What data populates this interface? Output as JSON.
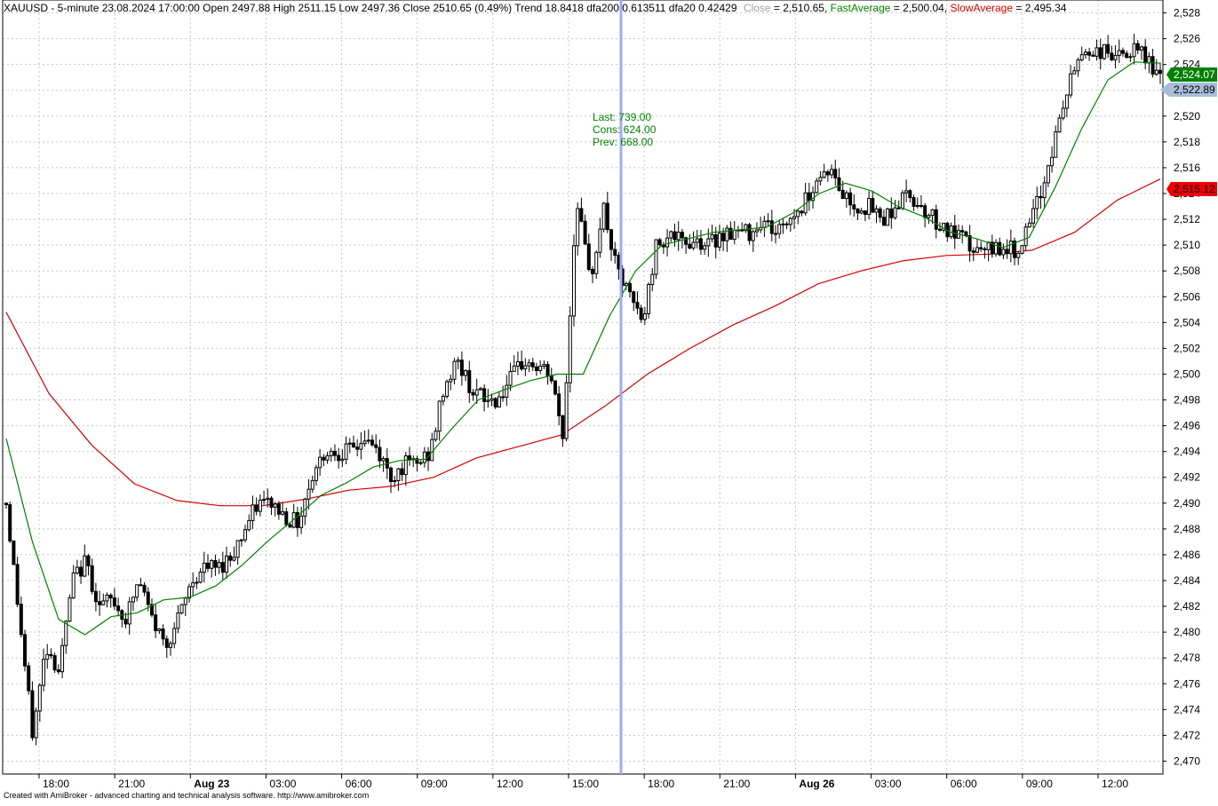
{
  "header": {
    "symbol_info": "XAUUSD - 5-minute 23.08.2024 17:00:00 Open 2497.88 High 2511.15 Low 2497.36 Close 2510.65 (0.49%) Trend 18.8418 dfa200 0.613511 dfa20 0.42429",
    "close_label": "Close",
    "close_value": " = 2,510.65, ",
    "fast_label": "FastAverage",
    "fast_value": " = 2,500.04, ",
    "slow_label": "SlowAverage",
    "slow_value": " = 2,495.34"
  },
  "annotation": {
    "last": "Last: 739.00",
    "cons": "Cons: 624.00",
    "prev": "Prev: 668.00"
  },
  "price_tags": {
    "fast": "2,524.07",
    "close": "2,522.89",
    "slow": "2,515.12"
  },
  "footer": {
    "credit": "Created with AmiBroker - advanced charting and technical analysis software. http://www.amibroker.com"
  },
  "colors": {
    "candles": "#000000",
    "fast_average": "#008000",
    "slow_average": "#d40000",
    "close_label": "#a0a0a0",
    "event_line": "#a0a8ff",
    "annotation": "#008000",
    "grid": "#c8c8c8"
  },
  "chart_data": {
    "type": "candlestick",
    "symbol": "XAUUSD",
    "interval": "5-minute",
    "grid": true,
    "ylim": [
      2469,
      2529
    ],
    "y_ticks": [
      2470,
      2472,
      2474,
      2476,
      2478,
      2480,
      2482,
      2484,
      2486,
      2488,
      2490,
      2492,
      2494,
      2496,
      2498,
      2500,
      2502,
      2504,
      2506,
      2508,
      2510,
      2512,
      2514,
      2516,
      2518,
      2520,
      2522,
      2524,
      2526,
      2528
    ],
    "y_tick_labels": [
      "2,470",
      "2,472",
      "2,474",
      "2,476",
      "2,478",
      "2,480",
      "2,482",
      "2,484",
      "2,486",
      "2,488",
      "2,490",
      "2,492",
      "2,494",
      "2,496",
      "2,498",
      "2,500",
      "2,502",
      "2,504",
      "2,506",
      "2,508",
      "2,510",
      "2,512",
      "2,514",
      "2,516",
      "2,518",
      "2,520",
      "2,522",
      "2,524",
      "2,526",
      "2,528"
    ],
    "x_ticks": [
      {
        "label": "18:00",
        "bold": false
      },
      {
        "label": "21:00",
        "bold": false
      },
      {
        "label": "Aug 23",
        "bold": true
      },
      {
        "label": "03:00",
        "bold": false
      },
      {
        "label": "06:00",
        "bold": false
      },
      {
        "label": "09:00",
        "bold": false
      },
      {
        "label": "12:00",
        "bold": false
      },
      {
        "label": "15:00",
        "bold": false
      },
      {
        "label": "18:00",
        "bold": false
      },
      {
        "label": "21:00",
        "bold": false
      },
      {
        "label": "Aug 26",
        "bold": true
      },
      {
        "label": "03:00",
        "bold": false
      },
      {
        "label": "06:00",
        "bold": false
      },
      {
        "label": "09:00",
        "bold": false
      },
      {
        "label": "12:00",
        "bold": false
      }
    ],
    "event_bar_time": "23.08.2024 17:00:00",
    "price_path": [
      2490,
      2481,
      2472,
      2479,
      2477,
      2484,
      2485.5,
      2482,
      2482.5,
      2481,
      2484,
      2481,
      2479,
      2481,
      2484,
      2485,
      2485,
      2486,
      2488,
      2490,
      2490,
      2489,
      2488.5,
      2492,
      2494,
      2494,
      2494,
      2495,
      2494,
      2492,
      2493,
      2493,
      2494,
      2499,
      2501,
      2499,
      2498,
      2498,
      2499.5,
      2501,
      2500.5,
      2500,
      2495,
      2514,
      2507,
      2513,
      2508,
      2506,
      2504,
      2510,
      2511,
      2510,
      2510.5,
      2510,
      2511,
      2511,
      2511,
      2512,
      2511,
      2512,
      2513,
      2515,
      2516,
      2514,
      2513,
      2513,
      2512,
      2513,
      2514,
      2513,
      2512,
      2511,
      2510.5,
      2509.5,
      2509.5,
      2510,
      2509.5,
      2511,
      2514,
      2518,
      2522,
      2525,
      2525,
      2525,
      2524.5,
      2525,
      2524.5,
      2522.89
    ],
    "bar_count": 310,
    "series": [
      {
        "name": "FastAverage",
        "values": [
          2495,
          2487,
          2481,
          2479.8,
          2481.2,
          2481.5,
          2482.5,
          2482.7,
          2483.6,
          2485.2,
          2487.1,
          2488.8,
          2490.6,
          2491.6,
          2492.8,
          2493.3,
          2493.4,
          2495.8,
          2498.0,
          2498.8,
          2499.5,
          2500.0,
          2500.0,
          2504.5,
          2508.0,
          2510.0,
          2510.5,
          2511.0,
          2511.2,
          2511.4,
          2512.5,
          2514.0,
          2514.8,
          2514.2,
          2513.0,
          2512.2,
          2511.0,
          2510.5,
          2509.8,
          2510.6,
          2514.5,
          2519.0,
          2522.8,
          2524.2,
          2524.1
        ]
      },
      {
        "name": "SlowAverage",
        "values": [
          2504.8,
          2498.5,
          2494.5,
          2491.5,
          2490.2,
          2489.8,
          2489.8,
          2490.3,
          2491.0,
          2491.3,
          2492.0,
          2493.5,
          2494.4,
          2495.3,
          2497.5,
          2500.0,
          2502.0,
          2503.8,
          2505.3,
          2507.0,
          2508.0,
          2508.8,
          2509.2,
          2509.3,
          2509.6,
          2511.0,
          2513.5,
          2515.12
        ]
      }
    ]
  }
}
